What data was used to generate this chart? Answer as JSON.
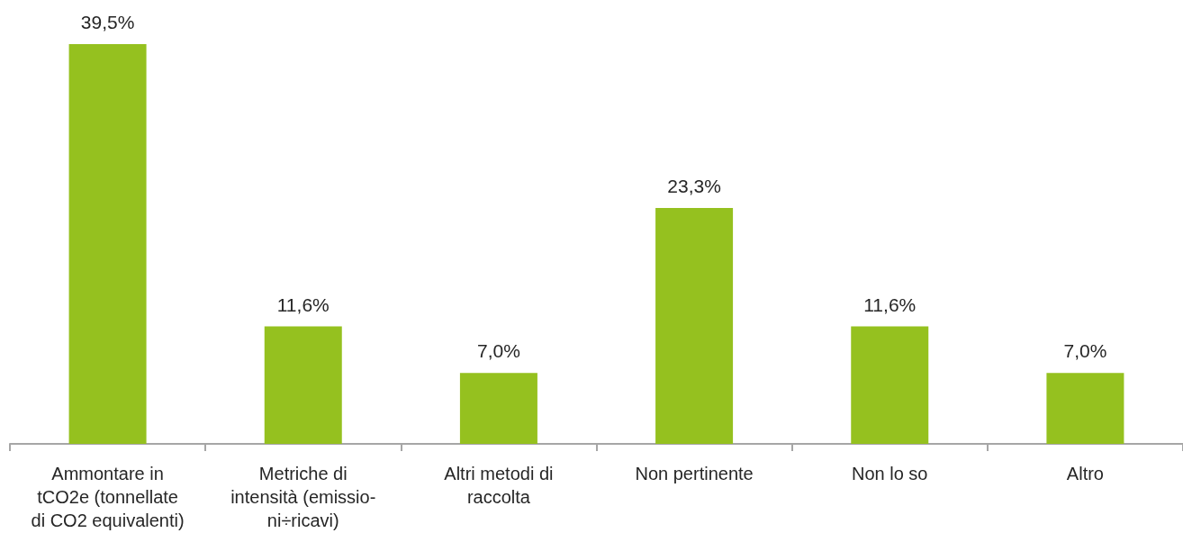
{
  "chart_data": {
    "type": "bar",
    "categories": [
      "Ammontare in\ntCO2e (tonnellate\ndi CO2 equivalenti)",
      "Metriche di\nintensità (emissio-\nni÷ricavi)",
      "Altri metodi di\nraccolta",
      "Non pertinente",
      "Non lo so",
      "Altro"
    ],
    "values": [
      39.5,
      11.6,
      7.0,
      23.3,
      11.6,
      7.0
    ],
    "value_labels": [
      "39,5%",
      "11,6%",
      "7,0%",
      "23,3%",
      "11,6%",
      "7,0%"
    ],
    "color": "#95c11f"
  }
}
